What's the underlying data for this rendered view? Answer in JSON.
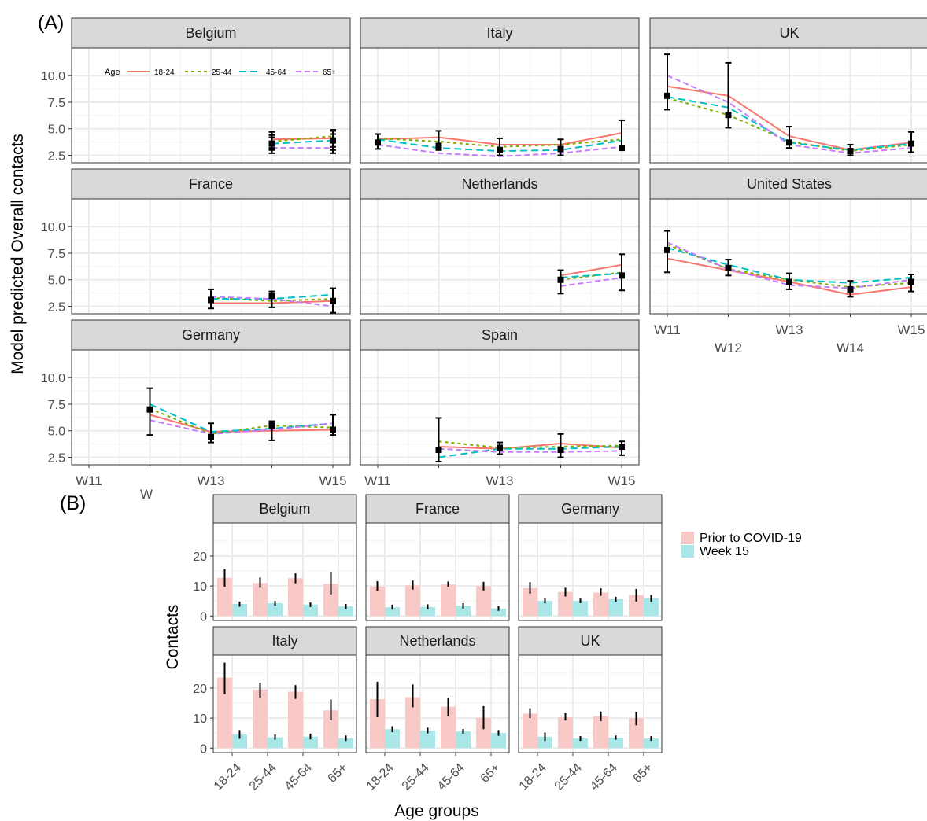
{
  "chart_data": [
    {
      "id": "A",
      "type": "line",
      "panel_label": "(A)",
      "ylabel": "Model predicted Overall contacts",
      "ylim": [
        1.8,
        12.6
      ],
      "yticks": [
        "2.5",
        "5.0",
        "7.5",
        "10.0"
      ],
      "x_categories": [
        "W11",
        "W12",
        "W13",
        "W14",
        "W15"
      ],
      "x_tick_labels_col0": [
        "W11",
        "",
        "W13",
        "",
        "W15"
      ],
      "x_tick_stray_col0": "W",
      "x_tick_labels_col1": [
        "W11",
        "",
        "W13",
        "",
        "W15"
      ],
      "x_tick_labels_col2": [
        "W11",
        "W12",
        "W13",
        "W14",
        "W15"
      ],
      "grid": true,
      "legend": {
        "title": "Age",
        "placement": "inside-top-left",
        "entries": [
          "18-24",
          "25-44",
          "45-64",
          "65+"
        ]
      },
      "series_colors": [
        "#F8766D",
        "#7CAE00",
        "#00BFC4",
        "#C77CFF"
      ],
      "panels": [
        {
          "title": "Belgium",
          "series": [
            [
              null,
              null,
              null,
              4.0,
              4.1
            ],
            [
              null,
              null,
              null,
              3.8,
              4.3
            ],
            [
              null,
              null,
              null,
              3.6,
              3.9
            ],
            [
              null,
              null,
              null,
              3.2,
              3.2
            ]
          ],
          "err": [
            [
              null,
              null,
              null,
              [
                3.0,
                4.7
              ],
              [
                3.0,
                4.9
              ]
            ],
            [
              null,
              null,
              null,
              [
                3.2,
                4.4
              ],
              [
                3.8,
                4.8
              ]
            ],
            [
              null,
              null,
              null,
              [
                3.1,
                4.2
              ],
              [
                3.3,
                4.5
              ]
            ],
            [
              null,
              null,
              null,
              [
                2.7,
                3.8
              ],
              [
                2.7,
                3.7
              ]
            ]
          ],
          "points": [
            null,
            null,
            null,
            3.6,
            3.9
          ]
        },
        {
          "title": "Italy",
          "series": [
            [
              4.0,
              4.2,
              3.5,
              3.5,
              4.6
            ],
            [
              4.1,
              3.8,
              3.3,
              3.5,
              4.0
            ],
            [
              4.0,
              3.2,
              2.9,
              3.0,
              3.9
            ],
            [
              3.5,
              2.7,
              2.4,
              2.7,
              3.3
            ]
          ],
          "err": [
            [
              [
                3.1,
                4.5
              ],
              [
                3.0,
                4.8
              ],
              [
                2.5,
                4.1
              ],
              [
                2.5,
                4.0
              ],
              [
                3.0,
                5.8
              ]
            ],
            null,
            null,
            null
          ],
          "points": [
            3.7,
            3.4,
            3.0,
            3.1,
            3.2
          ]
        },
        {
          "title": "UK",
          "series": [
            [
              9.0,
              8.1,
              4.3,
              3.0,
              3.7
            ],
            [
              7.9,
              6.3,
              3.8,
              2.9,
              3.5
            ],
            [
              8.0,
              7.0,
              3.7,
              3.0,
              3.6
            ],
            [
              10.0,
              7.5,
              3.5,
              2.7,
              3.2
            ]
          ],
          "err": [
            [
              [
                6.8,
                12.0
              ],
              [
                5.1,
                11.2
              ],
              [
                3.2,
                5.2
              ],
              [
                2.5,
                3.5
              ],
              [
                2.8,
                4.7
              ]
            ],
            null,
            null,
            null
          ],
          "points": [
            8.1,
            6.3,
            3.7,
            2.9,
            3.6
          ]
        },
        {
          "title": "France",
          "series": [
            [
              null,
              null,
              2.8,
              2.8,
              3.0
            ],
            [
              null,
              null,
              3.3,
              3.0,
              3.2
            ],
            [
              null,
              null,
              3.2,
              3.2,
              3.6
            ],
            [
              null,
              null,
              3.4,
              3.2,
              2.5
            ]
          ],
          "err": [
            [
              null,
              null,
              [
                2.3,
                4.1
              ],
              [
                2.4,
                3.9
              ],
              [
                1.9,
                4.2
              ]
            ],
            null,
            null,
            null
          ],
          "points": [
            null,
            null,
            3.1,
            3.5,
            3.0
          ]
        },
        {
          "title": "Netherlands",
          "series": [
            [
              null,
              null,
              null,
              5.4,
              6.4
            ],
            [
              null,
              null,
              null,
              5.0,
              5.7
            ],
            [
              null,
              null,
              null,
              5.2,
              5.6
            ],
            [
              null,
              null,
              null,
              4.4,
              5.2
            ]
          ],
          "err": [
            [
              null,
              null,
              null,
              [
                3.7,
                5.9
              ],
              [
                4.0,
                7.4
              ]
            ],
            null,
            null,
            null
          ],
          "points": [
            null,
            null,
            null,
            5.0,
            5.4
          ]
        },
        {
          "title": "United States",
          "series": [
            [
              7.0,
              5.9,
              4.8,
              3.6,
              4.3
            ],
            [
              8.3,
              6.0,
              5.0,
              4.3,
              4.7
            ],
            [
              8.0,
              6.4,
              5.0,
              4.7,
              5.2
            ],
            [
              8.5,
              6.0,
              4.5,
              4.2,
              5.0
            ]
          ],
          "err": [
            [
              [
                5.7,
                9.6
              ],
              [
                5.4,
                6.9
              ],
              [
                4.1,
                5.6
              ],
              [
                3.4,
                4.9
              ],
              [
                3.9,
                5.5
              ]
            ],
            null,
            null,
            null
          ],
          "points": [
            7.8,
            6.1,
            4.8,
            4.1,
            4.8
          ]
        },
        {
          "title": "Germany",
          "series": [
            [
              null,
              6.5,
              4.9,
              5.0,
              5.1
            ],
            [
              null,
              7.1,
              4.7,
              5.5,
              5.3
            ],
            [
              null,
              7.5,
              4.9,
              5.2,
              5.7
            ],
            [
              null,
              6.0,
              4.7,
              5.1,
              5.7
            ]
          ],
          "err": [
            [
              null,
              [
                4.6,
                9.0
              ],
              [
                3.9,
                5.7
              ],
              [
                4.1,
                5.9
              ],
              [
                4.6,
                6.5
              ]
            ],
            null,
            null,
            null
          ],
          "points": [
            null,
            7.0,
            4.4,
            5.5,
            5.1
          ]
        },
        {
          "title": "Spain",
          "series": [
            [
              null,
              3.5,
              3.3,
              3.8,
              3.4
            ],
            [
              null,
              4.0,
              3.4,
              3.5,
              3.6
            ],
            [
              null,
              2.5,
              3.3,
              3.3,
              3.5
            ],
            [
              null,
              3.3,
              3.0,
              3.0,
              3.1
            ]
          ],
          "err": [
            [
              null,
              [
                2.1,
                6.2
              ],
              [
                2.8,
                3.9
              ],
              [
                2.5,
                4.7
              ],
              [
                2.7,
                4.0
              ]
            ],
            null,
            null,
            null
          ],
          "points": [
            null,
            3.2,
            3.4,
            3.2,
            3.5
          ]
        }
      ]
    },
    {
      "id": "B",
      "type": "bar",
      "panel_label": "(B)",
      "xlabel": "Age groups",
      "ylabel": "Contacts",
      "ylim": [
        -1.5,
        31
      ],
      "yticks": [
        "0",
        "10",
        "20"
      ],
      "categories": [
        "18-24",
        "25-44",
        "45-64",
        "65+"
      ],
      "grid": true,
      "legend": {
        "placement": "right",
        "entries": [
          "Prior to COVID-19",
          "Week 15"
        ]
      },
      "series_colors": [
        "#F8C9C6",
        "#A9E6E8"
      ],
      "panels": [
        {
          "title": "Belgium",
          "prior": [
            12.7,
            11.0,
            12.6,
            10.7
          ],
          "prior_err": [
            [
              9.7,
              15.6
            ],
            [
              9.4,
              12.8
            ],
            [
              10.9,
              14.2
            ],
            [
              7.2,
              14.5
            ]
          ],
          "week15": [
            4.0,
            4.3,
            3.8,
            3.2
          ],
          "week15_err": [
            [
              3.1,
              4.8
            ],
            [
              3.4,
              5.0
            ],
            [
              3.0,
              4.5
            ],
            [
              2.3,
              4.0
            ]
          ]
        },
        {
          "title": "France",
          "prior": [
            9.8,
            10.2,
            10.5,
            10.0
          ],
          "prior_err": [
            [
              8.4,
              11.6
            ],
            [
              8.8,
              11.8
            ],
            [
              9.7,
              11.5
            ],
            [
              8.5,
              11.4
            ]
          ],
          "week15": [
            2.9,
            3.0,
            3.4,
            2.5
          ],
          "week15_err": [
            [
              2.1,
              3.8
            ],
            [
              2.2,
              3.9
            ],
            [
              2.5,
              4.3
            ],
            [
              1.7,
              3.3
            ]
          ]
        },
        {
          "title": "Germany",
          "prior": [
            9.3,
            8.0,
            7.8,
            7.0
          ],
          "prior_err": [
            [
              7.5,
              11.3
            ],
            [
              6.5,
              9.4
            ],
            [
              6.7,
              9.2
            ],
            [
              4.8,
              9.0
            ]
          ],
          "week15": [
            5.0,
            5.0,
            5.6,
            5.9
          ],
          "week15_err": [
            [
              4.2,
              5.8
            ],
            [
              4.3,
              5.8
            ],
            [
              4.8,
              6.4
            ],
            [
              4.7,
              7.0
            ]
          ]
        },
        {
          "title": "Italy",
          "prior": [
            23.5,
            19.5,
            18.8,
            12.6
          ],
          "prior_err": [
            [
              18.0,
              28.5
            ],
            [
              16.8,
              21.8
            ],
            [
              16.4,
              21.0
            ],
            [
              9.3,
              16.2
            ]
          ],
          "week15": [
            4.5,
            3.6,
            3.8,
            3.3
          ],
          "week15_err": [
            [
              3.1,
              6.0
            ],
            [
              2.8,
              4.5
            ],
            [
              2.9,
              4.8
            ],
            [
              2.4,
              4.2
            ]
          ]
        },
        {
          "title": "Netherlands",
          "prior": [
            16.3,
            17.0,
            13.8,
            10.1
          ],
          "prior_err": [
            [
              10.3,
              22.1
            ],
            [
              13.6,
              21.2
            ],
            [
              10.6,
              16.8
            ],
            [
              6.3,
              14.0
            ]
          ],
          "week15": [
            6.3,
            5.8,
            5.6,
            5.0
          ],
          "week15_err": [
            [
              5.3,
              7.3
            ],
            [
              4.9,
              6.8
            ],
            [
              4.8,
              6.4
            ],
            [
              4.1,
              6.0
            ]
          ]
        },
        {
          "title": "UK",
          "prior": [
            11.5,
            10.3,
            10.6,
            10.0
          ],
          "prior_err": [
            [
              10.0,
              13.3
            ],
            [
              9.2,
              11.6
            ],
            [
              9.0,
              12.2
            ],
            [
              7.6,
              12.1
            ]
          ],
          "week15": [
            3.8,
            3.2,
            3.5,
            3.2
          ],
          "week15_err": [
            [
              2.4,
              5.2
            ],
            [
              2.4,
              4.0
            ],
            [
              2.8,
              4.2
            ],
            [
              2.4,
              4.0
            ]
          ]
        }
      ]
    }
  ]
}
